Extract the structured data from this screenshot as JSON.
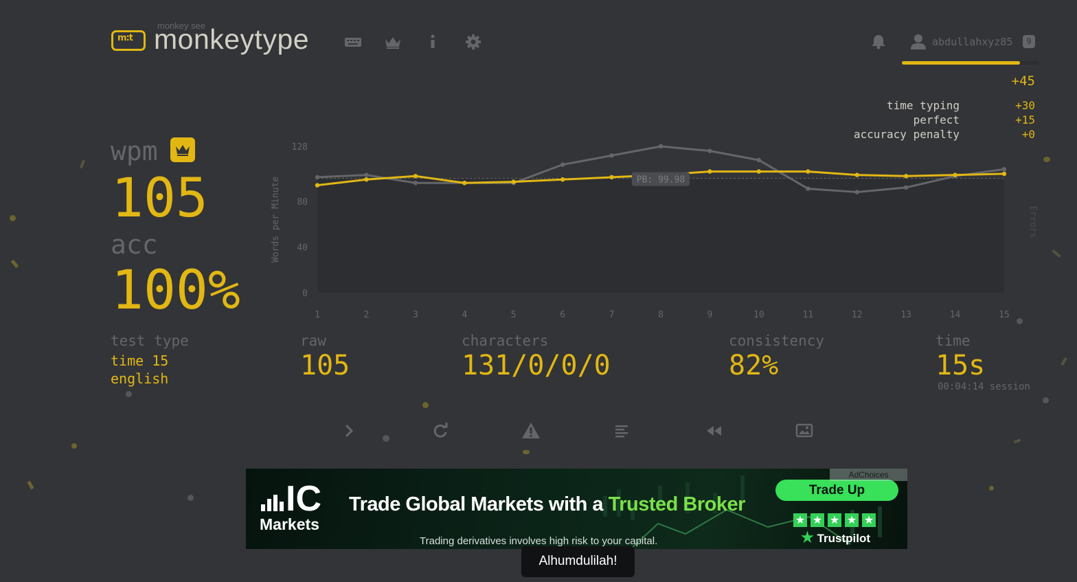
{
  "header": {
    "logo_small": "monkey see",
    "logo_text": "monkeytype",
    "logo_mark": "m:t",
    "nav_icons": [
      "keyboard-icon",
      "crown-icon",
      "info-icon",
      "gear-icon"
    ],
    "username": "abdullahxyz85",
    "level": "9",
    "xp_progress": 0.86
  },
  "xp": {
    "total": "+45",
    "breakdown": [
      {
        "label": "time typing",
        "value": "+30"
      },
      {
        "label": "perfect",
        "value": "+15"
      },
      {
        "label": "accuracy penalty",
        "value": "+0"
      }
    ]
  },
  "result": {
    "wpm_label": "wpm",
    "wpm": "105",
    "acc_label": "acc",
    "acc": "100%",
    "test_type_label": "test type",
    "test_type_line1": "time 15",
    "test_type_line2": "english",
    "raw_label": "raw",
    "raw": "105",
    "characters_label": "characters",
    "characters": "131/0/0/0",
    "consistency_label": "consistency",
    "consistency": "82%",
    "time_label": "time",
    "time": "15s",
    "session": "00:04:14 session"
  },
  "chart_data": {
    "type": "line",
    "x": [
      1,
      2,
      3,
      4,
      5,
      6,
      7,
      8,
      9,
      10,
      11,
      12,
      13,
      14,
      15
    ],
    "series": [
      {
        "name": "wpm",
        "color": "#e2b714",
        "values": [
          94,
          99,
          102,
          96,
          97,
          99,
          101,
          103,
          106,
          106,
          106,
          103,
          102,
          103,
          104
        ]
      },
      {
        "name": "raw",
        "color": "#646669",
        "values": [
          101,
          103,
          96,
          96,
          96,
          112,
          120,
          128,
          124,
          116,
          91,
          88,
          92,
          102,
          108
        ]
      }
    ],
    "ylabel": "Words per Minute",
    "y2label": "Errors",
    "yticks": [
      "0",
      "40",
      "80",
      "128"
    ],
    "ylim": [
      0,
      128
    ],
    "pb_value": 99.98,
    "pb_label": "PB: 99.98"
  },
  "actions": [
    "next-test-icon",
    "restart-icon",
    "warning-icon",
    "words-history-icon",
    "replay-icon",
    "screenshot-icon"
  ],
  "ad": {
    "brand_top": "IC",
    "brand_bottom": "Markets",
    "headline_start": "Trade Global Markets with a ",
    "headline_highlight": "Trusted Broker",
    "disclaimer": "Trading derivatives involves high risk to your capital.",
    "cta": "Trade Up",
    "rating_label": "Trustpilot",
    "adchoices": "AdChoices"
  },
  "toast": "Alhumdulilah!"
}
